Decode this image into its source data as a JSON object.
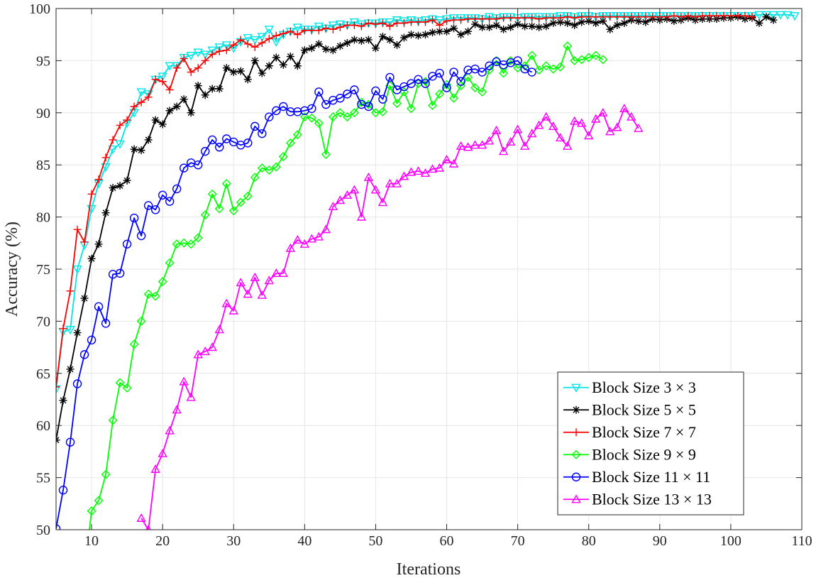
{
  "chart_data": {
    "type": "line",
    "xlabel": "Iterations",
    "ylabel": "Accuracy (%)",
    "xlim": [
      5,
      110
    ],
    "ylim": [
      50,
      100
    ],
    "xticks": [
      10,
      20,
      30,
      40,
      50,
      60,
      70,
      80,
      90,
      100,
      110
    ],
    "yticks": [
      50,
      55,
      60,
      65,
      70,
      75,
      80,
      85,
      90,
      95,
      100
    ],
    "grid": true,
    "legend_position": "bottom-right",
    "series": [
      {
        "name": "Block Size 3 × 3",
        "color": "#00e6e6",
        "marker": "triangle-down",
        "x_start": 5,
        "values": [
          63.5,
          69.0,
          69.2,
          75.0,
          77.3,
          80.8,
          83.2,
          84.8,
          86.5,
          87.0,
          89.0,
          90.0,
          92.0,
          91.8,
          93.2,
          93.5,
          94.5,
          94.5,
          95.3,
          95.5,
          95.8,
          95.6,
          96.0,
          96.3,
          96.5,
          96.2,
          96.8,
          97.2,
          97.0,
          97.3,
          98.0,
          96.8,
          97.5,
          97.8,
          98.2,
          98.0,
          98.0,
          98.3,
          98.1,
          98.4,
          98.5,
          98.4,
          98.7,
          98.5,
          98.6,
          98.6,
          98.7,
          98.7,
          98.9,
          98.8,
          98.9,
          98.8,
          98.9,
          99.0,
          98.9,
          99.0,
          99.1,
          99.1,
          99.1,
          99.1,
          99.0,
          99.2,
          99.1,
          99.2,
          99.2,
          99.1,
          99.2,
          99.2,
          99.2,
          99.2,
          99.2,
          99.3,
          99.3,
          99.2,
          99.3,
          99.3,
          99.2,
          99.3,
          99.3,
          99.3,
          99.3,
          99.3,
          99.3,
          99.3,
          99.3,
          99.3,
          99.3,
          99.3,
          99.3,
          99.3,
          99.3,
          99.3,
          99.3,
          99.3,
          99.3,
          99.3,
          99.3,
          99.3,
          99.3,
          99.4,
          99.4,
          99.4,
          99.4,
          99.4,
          99.3
        ]
      },
      {
        "name": "Block Size 5 × 5",
        "color": "#000000",
        "marker": "asterisk",
        "x_start": 5,
        "values": [
          58.6,
          62.4,
          65.4,
          68.9,
          72.2,
          76.0,
          77.4,
          80.4,
          82.8,
          83.0,
          83.5,
          86.5,
          86.4,
          87.4,
          89.3,
          88.9,
          90.2,
          90.6,
          91.3,
          90.0,
          92.6,
          91.7,
          92.3,
          92.3,
          94.3,
          93.9,
          94.0,
          93.2,
          95.0,
          93.8,
          94.5,
          95.3,
          94.6,
          95.4,
          94.5,
          96.0,
          96.2,
          96.6,
          96.1,
          96.0,
          96.4,
          96.7,
          97.0,
          96.9,
          97.0,
          96.2,
          97.3,
          97.0,
          96.5,
          97.2,
          97.5,
          97.4,
          97.5,
          97.7,
          97.8,
          97.8,
          98.1,
          97.5,
          97.8,
          98.5,
          98.2,
          98.2,
          98.4,
          98.0,
          98.2,
          98.5,
          98.3,
          98.3,
          98.2,
          98.3,
          98.6,
          98.7,
          98.6,
          98.4,
          98.7,
          98.8,
          98.6,
          98.8,
          98.0,
          98.4,
          98.6,
          98.9,
          98.8,
          98.7,
          99.0,
          98.9,
          99.0,
          98.8,
          98.9,
          99.1,
          98.9,
          99.0,
          99.0,
          99.0,
          99.1,
          99.1,
          99.2,
          99.0,
          99.1,
          98.6,
          99.2,
          98.9
        ]
      },
      {
        "name": "Block Size 7 × 7",
        "color": "#ff0000",
        "marker": "plus",
        "x_start": 5,
        "values": [
          63.7,
          69.3,
          72.9,
          78.8,
          77.6,
          82.2,
          83.6,
          85.7,
          87.4,
          88.8,
          89.3,
          90.6,
          91.0,
          91.5,
          93.2,
          93.0,
          92.2,
          94.3,
          95.2,
          93.9,
          94.3,
          95.0,
          95.6,
          95.9,
          96.0,
          96.5,
          97.0,
          96.6,
          96.3,
          96.7,
          97.1,
          97.4,
          97.6,
          97.8,
          97.5,
          97.9,
          97.9,
          97.9,
          98.1,
          98.0,
          98.2,
          98.4,
          98.4,
          98.3,
          98.6,
          98.5,
          98.6,
          98.3,
          98.6,
          98.6,
          98.7,
          98.7,
          98.7,
          98.9,
          98.4,
          98.8,
          98.9,
          98.9,
          99.0,
          99.0,
          99.0,
          99.0,
          99.0,
          99.1,
          99.1,
          99.1,
          99.1,
          99.1,
          99.0,
          99.1,
          99.1,
          99.1,
          99.2,
          99.1,
          99.2,
          99.2,
          99.2,
          99.2,
          99.2,
          99.2,
          99.2,
          99.2,
          99.2,
          99.2,
          99.2,
          99.2,
          99.2,
          99.3,
          99.2,
          99.3,
          99.2,
          99.3,
          99.3,
          99.3,
          99.3,
          99.3,
          99.3,
          99.3,
          99.2
        ]
      },
      {
        "name": "Block Size 9 × 9",
        "color": "#00ff00",
        "marker": "diamond",
        "x_start": 9,
        "values": [
          46.0,
          51.8,
          52.8,
          55.3,
          60.5,
          64.1,
          63.6,
          67.8,
          70.0,
          72.6,
          72.4,
          73.8,
          75.6,
          77.4,
          77.5,
          77.4,
          78.0,
          80.2,
          82.2,
          80.8,
          83.2,
          80.6,
          81.4,
          82.0,
          83.8,
          84.7,
          84.5,
          84.8,
          85.8,
          87.1,
          87.9,
          89.6,
          89.5,
          89.0,
          86.0,
          89.6,
          90.0,
          89.6,
          90.0,
          91.0,
          90.8,
          90.0,
          90.1,
          92.6,
          90.9,
          92.0,
          90.4,
          92.8,
          93.0,
          90.7,
          91.8,
          92.7,
          91.4,
          92.6,
          93.4,
          92.4,
          92.0,
          94.1,
          95.0,
          93.8,
          95.0,
          94.3,
          94.5,
          95.5,
          94.1,
          94.5,
          94.2,
          94.4,
          96.4,
          95.0,
          95.1,
          95.3,
          95.5,
          95.1
        ]
      },
      {
        "name": "Block Size 11 × 11",
        "color": "#0000ff",
        "marker": "circle",
        "x_start": 5,
        "values": [
          50.1,
          53.8,
          58.4,
          64.0,
          66.8,
          68.2,
          71.4,
          69.8,
          74.5,
          74.6,
          77.4,
          79.9,
          78.2,
          81.1,
          80.7,
          82.1,
          81.5,
          82.7,
          84.7,
          85.2,
          85.0,
          86.3,
          87.4,
          86.7,
          87.5,
          87.2,
          86.9,
          87.1,
          88.7,
          88.0,
          89.6,
          90.2,
          90.6,
          90.1,
          90.1,
          90.2,
          90.4,
          92.0,
          90.8,
          91.2,
          91.4,
          91.8,
          92.2,
          90.8,
          90.6,
          92.1,
          91.3,
          93.4,
          92.2,
          92.5,
          92.8,
          93.2,
          92.8,
          93.5,
          93.8,
          92.4,
          93.9,
          93.0,
          94.1,
          94.2,
          93.9,
          94.5,
          94.9,
          94.6,
          94.8,
          95.0,
          94.2,
          93.9
        ]
      },
      {
        "name": "Block Size 13 × 13",
        "color": "#ff00ff",
        "marker": "triangle-up",
        "x_start": 17,
        "values": [
          51.1,
          50.0,
          55.8,
          57.3,
          59.5,
          61.5,
          64.2,
          62.7,
          66.8,
          67.1,
          67.5,
          69.2,
          71.7,
          71.0,
          73.7,
          72.6,
          74.2,
          72.5,
          73.9,
          74.6,
          74.6,
          77.0,
          77.8,
          77.4,
          77.9,
          78.1,
          78.8,
          81.0,
          81.6,
          82.1,
          82.6,
          80.0,
          83.8,
          82.6,
          81.4,
          83.2,
          83.2,
          83.9,
          84.3,
          84.4,
          84.2,
          84.6,
          84.7,
          85.5,
          85.1,
          86.8,
          86.7,
          86.9,
          86.9,
          87.3,
          88.3,
          86.3,
          87.2,
          88.4,
          86.8,
          88.0,
          88.8,
          89.6,
          88.7,
          87.6,
          86.8,
          89.2,
          89.0,
          87.8,
          89.4,
          90.0,
          88.2,
          88.6,
          90.4,
          89.6,
          88.5
        ]
      }
    ]
  }
}
